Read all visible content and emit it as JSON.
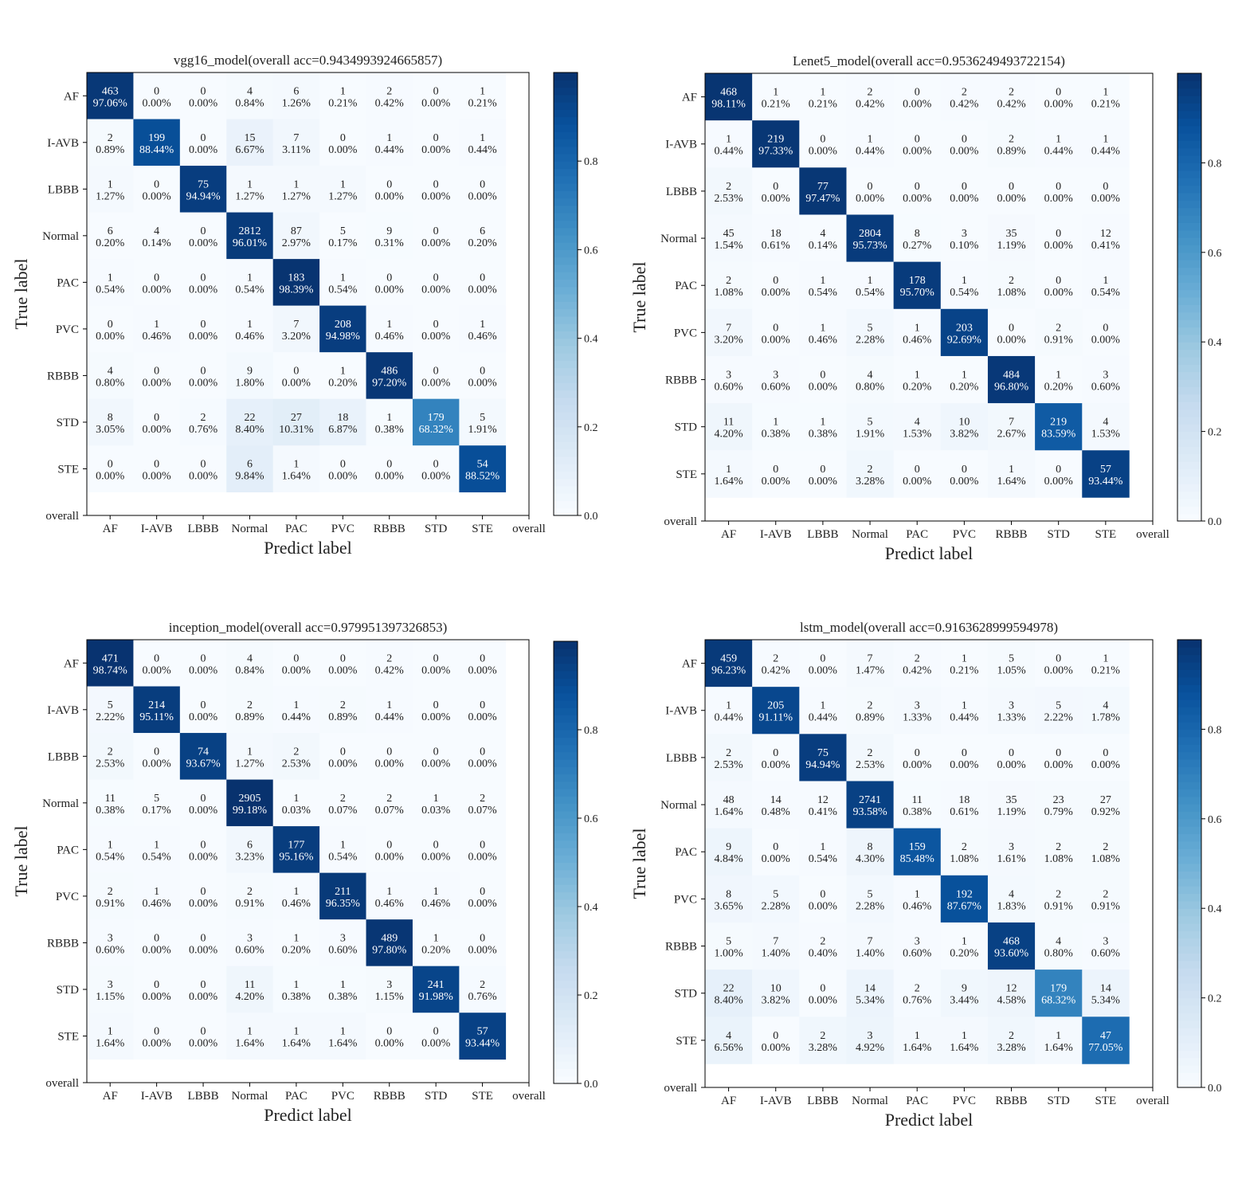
{
  "chart_data": [
    {
      "type": "heatmap",
      "title": "vgg16_model(overall acc=0.9434993924665857)",
      "xlabel": "Predict label",
      "ylabel": "True label",
      "x_ticks": [
        "AF",
        "I-AVB",
        "LBBB",
        "Normal",
        "PAC",
        "PVC",
        "RBBB",
        "STD",
        "STE",
        "overall"
      ],
      "y_ticks": [
        "AF",
        "I-AVB",
        "LBBB",
        "Normal",
        "PAC",
        "PVC",
        "RBBB",
        "STD",
        "STE",
        "overall"
      ],
      "categories": [
        "AF",
        "I-AVB",
        "LBBB",
        "Normal",
        "PAC",
        "PVC",
        "RBBB",
        "STD",
        "STE"
      ],
      "counts": [
        [
          463,
          0,
          0,
          4,
          6,
          1,
          2,
          0,
          1
        ],
        [
          2,
          199,
          0,
          15,
          7,
          0,
          1,
          0,
          1
        ],
        [
          1,
          0,
          75,
          1,
          1,
          1,
          0,
          0,
          0
        ],
        [
          6,
          4,
          0,
          2812,
          87,
          5,
          9,
          0,
          6
        ],
        [
          1,
          0,
          0,
          1,
          183,
          1,
          0,
          0,
          0
        ],
        [
          0,
          1,
          0,
          1,
          7,
          208,
          1,
          0,
          1
        ],
        [
          4,
          0,
          0,
          9,
          0,
          1,
          486,
          0,
          0
        ],
        [
          8,
          0,
          2,
          22,
          27,
          18,
          1,
          179,
          5
        ],
        [
          0,
          0,
          0,
          6,
          1,
          0,
          0,
          0,
          54
        ]
      ],
      "percents": [
        [
          "97.06%",
          "0.00%",
          "0.00%",
          "0.84%",
          "1.26%",
          "0.21%",
          "0.42%",
          "0.00%",
          "0.21%"
        ],
        [
          "0.89%",
          "88.44%",
          "0.00%",
          "6.67%",
          "3.11%",
          "0.00%",
          "0.44%",
          "0.00%",
          "0.44%"
        ],
        [
          "1.27%",
          "0.00%",
          "94.94%",
          "1.27%",
          "1.27%",
          "1.27%",
          "0.00%",
          "0.00%",
          "0.00%"
        ],
        [
          "0.20%",
          "0.14%",
          "0.00%",
          "96.01%",
          "2.97%",
          "0.17%",
          "0.31%",
          "0.00%",
          "0.20%"
        ],
        [
          "0.54%",
          "0.00%",
          "0.00%",
          "0.54%",
          "98.39%",
          "0.54%",
          "0.00%",
          "0.00%",
          "0.00%"
        ],
        [
          "0.00%",
          "0.46%",
          "0.00%",
          "0.46%",
          "3.20%",
          "94.98%",
          "0.46%",
          "0.00%",
          "0.46%"
        ],
        [
          "0.80%",
          "0.00%",
          "0.00%",
          "1.80%",
          "0.00%",
          "0.20%",
          "97.20%",
          "0.00%",
          "0.00%"
        ],
        [
          "3.05%",
          "0.00%",
          "0.76%",
          "8.40%",
          "10.31%",
          "6.87%",
          "0.38%",
          "68.32%",
          "1.91%"
        ],
        [
          "0.00%",
          "0.00%",
          "0.00%",
          "9.84%",
          "1.64%",
          "0.00%",
          "0.00%",
          "0.00%",
          "88.52%"
        ]
      ],
      "colorbar": {
        "range": [
          0,
          1
        ],
        "ticks": [
          "0.0",
          "0.2",
          "0.4",
          "0.6",
          "0.8"
        ]
      }
    },
    {
      "type": "heatmap",
      "title": "Lenet5_model(overall acc=0.9536249493722154)",
      "xlabel": "Predict label",
      "ylabel": "True label",
      "x_ticks": [
        "AF",
        "I-AVB",
        "LBBB",
        "Normal",
        "PAC",
        "PVC",
        "RBBB",
        "STD",
        "STE",
        "overall"
      ],
      "y_ticks": [
        "AF",
        "I-AVB",
        "LBBB",
        "Normal",
        "PAC",
        "PVC",
        "RBBB",
        "STD",
        "STE",
        "overall"
      ],
      "categories": [
        "AF",
        "I-AVB",
        "LBBB",
        "Normal",
        "PAC",
        "PVC",
        "RBBB",
        "STD",
        "STE"
      ],
      "counts": [
        [
          468,
          1,
          1,
          2,
          0,
          2,
          2,
          0,
          1
        ],
        [
          1,
          219,
          0,
          1,
          0,
          0,
          2,
          1,
          1
        ],
        [
          2,
          0,
          77,
          0,
          0,
          0,
          0,
          0,
          0
        ],
        [
          45,
          18,
          4,
          2804,
          8,
          3,
          35,
          0,
          12
        ],
        [
          2,
          0,
          1,
          1,
          178,
          1,
          2,
          0,
          1
        ],
        [
          7,
          0,
          1,
          5,
          1,
          203,
          0,
          2,
          0
        ],
        [
          3,
          3,
          0,
          4,
          1,
          1,
          484,
          1,
          3
        ],
        [
          11,
          1,
          1,
          5,
          4,
          10,
          7,
          219,
          4
        ],
        [
          1,
          0,
          0,
          2,
          0,
          0,
          1,
          0,
          57
        ]
      ],
      "percents": [
        [
          "98.11%",
          "0.21%",
          "0.21%",
          "0.42%",
          "0.00%",
          "0.42%",
          "0.42%",
          "0.00%",
          "0.21%"
        ],
        [
          "0.44%",
          "97.33%",
          "0.00%",
          "0.44%",
          "0.00%",
          "0.00%",
          "0.89%",
          "0.44%",
          "0.44%"
        ],
        [
          "2.53%",
          "0.00%",
          "97.47%",
          "0.00%",
          "0.00%",
          "0.00%",
          "0.00%",
          "0.00%",
          "0.00%"
        ],
        [
          "1.54%",
          "0.61%",
          "0.14%",
          "95.73%",
          "0.27%",
          "0.10%",
          "1.19%",
          "0.00%",
          "0.41%"
        ],
        [
          "1.08%",
          "0.00%",
          "0.54%",
          "0.54%",
          "95.70%",
          "0.54%",
          "1.08%",
          "0.00%",
          "0.54%"
        ],
        [
          "3.20%",
          "0.00%",
          "0.46%",
          "2.28%",
          "0.46%",
          "92.69%",
          "0.00%",
          "0.91%",
          "0.00%"
        ],
        [
          "0.60%",
          "0.60%",
          "0.00%",
          "0.80%",
          "0.20%",
          "0.20%",
          "96.80%",
          "0.20%",
          "0.60%"
        ],
        [
          "4.20%",
          "0.38%",
          "0.38%",
          "1.91%",
          "1.53%",
          "3.82%",
          "2.67%",
          "83.59%",
          "1.53%"
        ],
        [
          "1.64%",
          "0.00%",
          "0.00%",
          "3.28%",
          "0.00%",
          "0.00%",
          "1.64%",
          "0.00%",
          "93.44%"
        ]
      ],
      "colorbar": {
        "range": [
          0,
          1
        ],
        "ticks": [
          "0.0",
          "0.2",
          "0.4",
          "0.6",
          "0.8"
        ]
      }
    },
    {
      "type": "heatmap",
      "title": "inception_model(overall acc=0.979951397326853)",
      "xlabel": "Predict label",
      "ylabel": "True label",
      "x_ticks": [
        "AF",
        "I-AVB",
        "LBBB",
        "Normal",
        "PAC",
        "PVC",
        "RBBB",
        "STD",
        "STE",
        "overall"
      ],
      "y_ticks": [
        "AF",
        "I-AVB",
        "LBBB",
        "Normal",
        "PAC",
        "PVC",
        "RBBB",
        "STD",
        "STE",
        "overall"
      ],
      "categories": [
        "AF",
        "I-AVB",
        "LBBB",
        "Normal",
        "PAC",
        "PVC",
        "RBBB",
        "STD",
        "STE"
      ],
      "counts": [
        [
          471,
          0,
          0,
          4,
          0,
          0,
          2,
          0,
          0
        ],
        [
          5,
          214,
          0,
          2,
          1,
          2,
          1,
          0,
          0
        ],
        [
          2,
          0,
          74,
          1,
          2,
          0,
          0,
          0,
          0
        ],
        [
          11,
          5,
          0,
          2905,
          1,
          2,
          2,
          1,
          2
        ],
        [
          1,
          1,
          0,
          6,
          177,
          1,
          0,
          0,
          0
        ],
        [
          2,
          1,
          0,
          2,
          1,
          211,
          1,
          1,
          0
        ],
        [
          3,
          0,
          0,
          3,
          1,
          3,
          489,
          1,
          0
        ],
        [
          3,
          0,
          0,
          11,
          1,
          1,
          3,
          241,
          2
        ],
        [
          1,
          0,
          0,
          1,
          1,
          1,
          0,
          0,
          57
        ]
      ],
      "percents": [
        [
          "98.74%",
          "0.00%",
          "0.00%",
          "0.84%",
          "0.00%",
          "0.00%",
          "0.42%",
          "0.00%",
          "0.00%"
        ],
        [
          "2.22%",
          "95.11%",
          "0.00%",
          "0.89%",
          "0.44%",
          "0.89%",
          "0.44%",
          "0.00%",
          "0.00%"
        ],
        [
          "2.53%",
          "0.00%",
          "93.67%",
          "1.27%",
          "2.53%",
          "0.00%",
          "0.00%",
          "0.00%",
          "0.00%"
        ],
        [
          "0.38%",
          "0.17%",
          "0.00%",
          "99.18%",
          "0.03%",
          "0.07%",
          "0.07%",
          "0.03%",
          "0.07%"
        ],
        [
          "0.54%",
          "0.54%",
          "0.00%",
          "3.23%",
          "95.16%",
          "0.54%",
          "0.00%",
          "0.00%",
          "0.00%"
        ],
        [
          "0.91%",
          "0.46%",
          "0.00%",
          "0.91%",
          "0.46%",
          "96.35%",
          "0.46%",
          "0.46%",
          "0.00%"
        ],
        [
          "0.60%",
          "0.00%",
          "0.00%",
          "0.60%",
          "0.20%",
          "0.60%",
          "97.80%",
          "0.20%",
          "0.00%"
        ],
        [
          "1.15%",
          "0.00%",
          "0.00%",
          "4.20%",
          "0.38%",
          "0.38%",
          "1.15%",
          "91.98%",
          "0.76%"
        ],
        [
          "1.64%",
          "0.00%",
          "0.00%",
          "1.64%",
          "1.64%",
          "1.64%",
          "0.00%",
          "0.00%",
          "93.44%"
        ]
      ],
      "colorbar": {
        "range": [
          0,
          1
        ],
        "ticks": [
          "0.0",
          "0.2",
          "0.4",
          "0.6",
          "0.8"
        ]
      }
    },
    {
      "type": "heatmap",
      "title": "lstm_model(overall acc=0.9163628999594978)",
      "xlabel": "Predict label",
      "ylabel": "True label",
      "x_ticks": [
        "AF",
        "I-AVB",
        "LBBB",
        "Normal",
        "PAC",
        "PVC",
        "RBBB",
        "STD",
        "STE",
        "overall"
      ],
      "y_ticks": [
        "AF",
        "I-AVB",
        "LBBB",
        "Normal",
        "PAC",
        "PVC",
        "RBBB",
        "STD",
        "STE",
        "overall"
      ],
      "categories": [
        "AF",
        "I-AVB",
        "LBBB",
        "Normal",
        "PAC",
        "PVC",
        "RBBB",
        "STD",
        "STE"
      ],
      "counts": [
        [
          459,
          2,
          0,
          7,
          2,
          1,
          5,
          0,
          1
        ],
        [
          1,
          205,
          1,
          2,
          3,
          1,
          3,
          5,
          4
        ],
        [
          2,
          0,
          75,
          2,
          0,
          0,
          0,
          0,
          0
        ],
        [
          48,
          14,
          12,
          2741,
          11,
          18,
          35,
          23,
          27
        ],
        [
          9,
          0,
          1,
          8,
          159,
          2,
          3,
          2,
          2
        ],
        [
          8,
          5,
          0,
          5,
          1,
          192,
          4,
          2,
          2
        ],
        [
          5,
          7,
          2,
          7,
          3,
          1,
          468,
          4,
          3
        ],
        [
          22,
          10,
          0,
          14,
          2,
          9,
          12,
          179,
          14
        ],
        [
          4,
          0,
          2,
          3,
          1,
          1,
          2,
          1,
          47
        ]
      ],
      "percents": [
        [
          "96.23%",
          "0.42%",
          "0.00%",
          "1.47%",
          "0.42%",
          "0.21%",
          "1.05%",
          "0.00%",
          "0.21%"
        ],
        [
          "0.44%",
          "91.11%",
          "0.44%",
          "0.89%",
          "1.33%",
          "0.44%",
          "1.33%",
          "2.22%",
          "1.78%"
        ],
        [
          "2.53%",
          "0.00%",
          "94.94%",
          "2.53%",
          "0.00%",
          "0.00%",
          "0.00%",
          "0.00%",
          "0.00%"
        ],
        [
          "1.64%",
          "0.48%",
          "0.41%",
          "93.58%",
          "0.38%",
          "0.61%",
          "1.19%",
          "0.79%",
          "0.92%"
        ],
        [
          "4.84%",
          "0.00%",
          "0.54%",
          "4.30%",
          "85.48%",
          "1.08%",
          "1.61%",
          "1.08%",
          "1.08%"
        ],
        [
          "3.65%",
          "2.28%",
          "0.00%",
          "2.28%",
          "0.46%",
          "87.67%",
          "1.83%",
          "0.91%",
          "0.91%"
        ],
        [
          "1.00%",
          "1.40%",
          "0.40%",
          "1.40%",
          "0.60%",
          "0.20%",
          "93.60%",
          "0.80%",
          "0.60%"
        ],
        [
          "8.40%",
          "3.82%",
          "0.00%",
          "5.34%",
          "0.76%",
          "3.44%",
          "4.58%",
          "68.32%",
          "5.34%"
        ],
        [
          "6.56%",
          "0.00%",
          "3.28%",
          "4.92%",
          "1.64%",
          "1.64%",
          "3.28%",
          "1.64%",
          "77.05%"
        ]
      ],
      "colorbar": {
        "range": [
          0,
          1
        ],
        "ticks": [
          "0.0",
          "0.2",
          "0.4",
          "0.6",
          "0.8"
        ]
      }
    }
  ],
  "colors": {
    "cmap_light": "#f7fbff",
    "cmap_dark": "#08306b",
    "text_dark": "#222222",
    "text_light": "#ffffff"
  }
}
